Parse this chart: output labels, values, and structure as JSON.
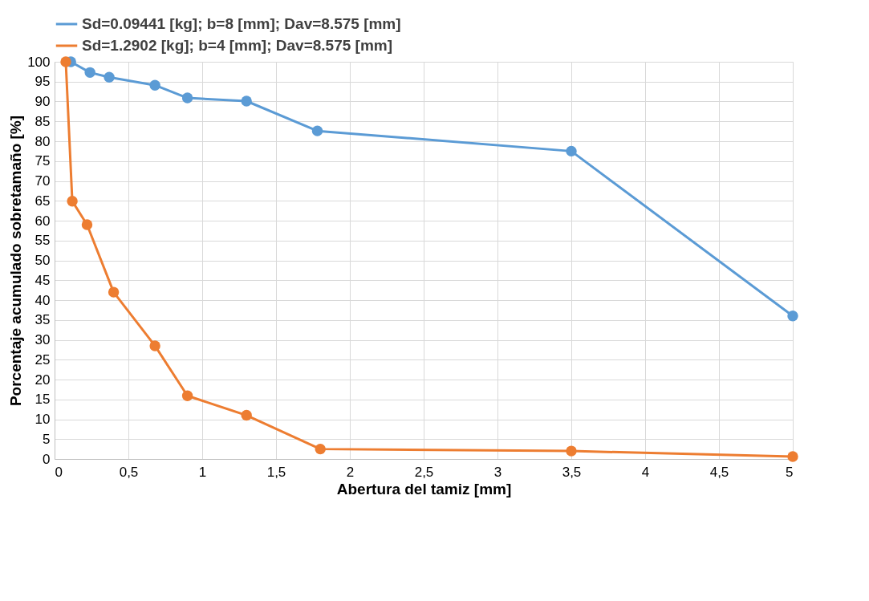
{
  "chart_data": {
    "type": "line",
    "xlabel": "Abertura del tamiz [mm]",
    "ylabel": "Porcentaje acumulado sobretamaño [%]",
    "xlim": [
      0,
      5
    ],
    "xticks": [
      0,
      {
        "value": 0.5,
        "label": "0,5"
      },
      1,
      {
        "value": 1.5,
        "label": "1,5"
      },
      2,
      {
        "value": 2.5,
        "label": "2,5"
      },
      3,
      {
        "value": 3.5,
        "label": "3,5"
      },
      4,
      {
        "value": 4.5,
        "label": "4,5"
      },
      5
    ],
    "ylim": [
      0,
      100
    ],
    "yticks": [
      0,
      5,
      10,
      15,
      20,
      25,
      30,
      35,
      40,
      45,
      50,
      55,
      60,
      65,
      70,
      75,
      80,
      85,
      90,
      95,
      100
    ],
    "grid": true,
    "legend": "top",
    "marker": "circle",
    "line_style": "solid",
    "series": [
      {
        "name": "Sd=0.09441 [kg]; b=8 [mm]; Dav=8.575 [mm]",
        "color": "#5b9bd5",
        "x": [
          0.11,
          0.24,
          0.37,
          0.68,
          0.9,
          1.3,
          1.78,
          3.5,
          5
        ],
        "values": [
          100,
          97.3,
          96.1,
          94.1,
          90.9,
          90.1,
          82.6,
          77.5,
          36
        ]
      },
      {
        "name": "Sd=1.2902 [kg]; b=4 [mm]; Dav=8.575 [mm]",
        "color": "#ed7d31",
        "x": [
          0.076,
          0.12,
          0.22,
          0.4,
          0.68,
          0.9,
          1.3,
          1.8,
          3.5,
          5
        ],
        "values": [
          100,
          64.9,
          59,
          42,
          28.5,
          15.9,
          11,
          2.5,
          2,
          0.6
        ]
      }
    ]
  }
}
